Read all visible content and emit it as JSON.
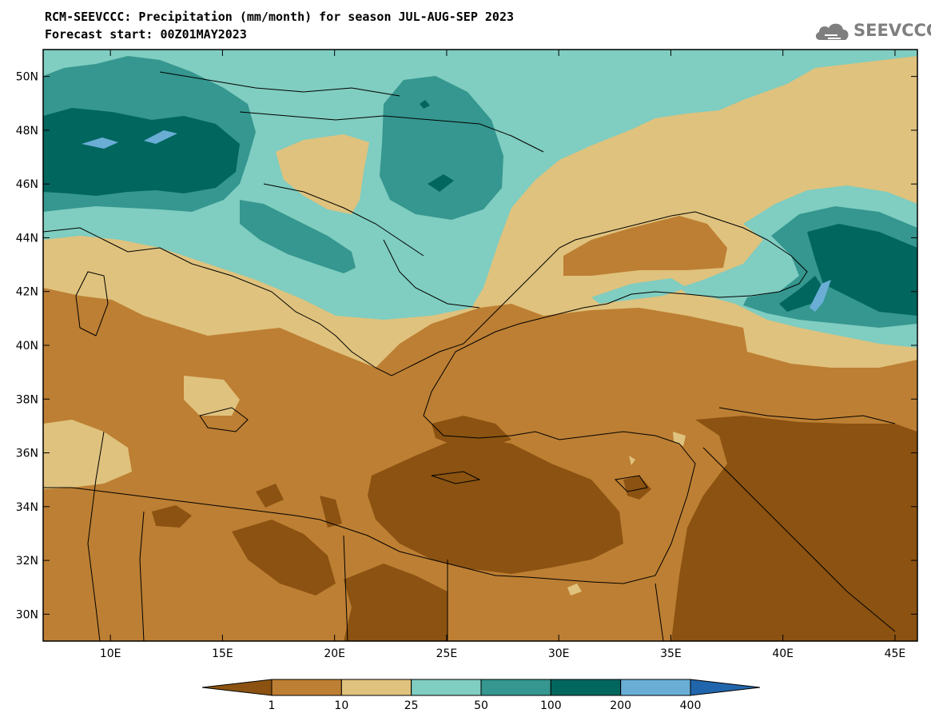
{
  "header": {
    "title": "RCM-SEEVCCC: Precipitation (mm/month) for season JUL-AUG-SEP 2023",
    "subtitle": "Forecast start: 00Z01MAY2023"
  },
  "logo": {
    "text": "SEEVCCC",
    "icon": "cloud-icon"
  },
  "map": {
    "lon_range": [
      7,
      46
    ],
    "lat_range": [
      29,
      51
    ],
    "lat_ticks": [
      "30N",
      "32N",
      "34N",
      "36N",
      "38N",
      "40N",
      "42N",
      "44N",
      "46N",
      "48N",
      "50N"
    ],
    "lat_values": [
      30,
      32,
      34,
      36,
      38,
      40,
      42,
      44,
      46,
      48,
      50
    ],
    "lon_ticks": [
      "10E",
      "15E",
      "20E",
      "25E",
      "30E",
      "35E",
      "40E",
      "45E"
    ],
    "lon_values": [
      10,
      15,
      20,
      25,
      30,
      35,
      40,
      45
    ]
  },
  "legend": {
    "boundaries": [
      "1",
      "10",
      "25",
      "50",
      "100",
      "200",
      "400"
    ],
    "colors": [
      "#8b5211",
      "#bd7f33",
      "#dfc27d",
      "#80cdc1",
      "#35978f",
      "#01665e",
      "#6aaed6",
      "#2166ac"
    ]
  }
}
